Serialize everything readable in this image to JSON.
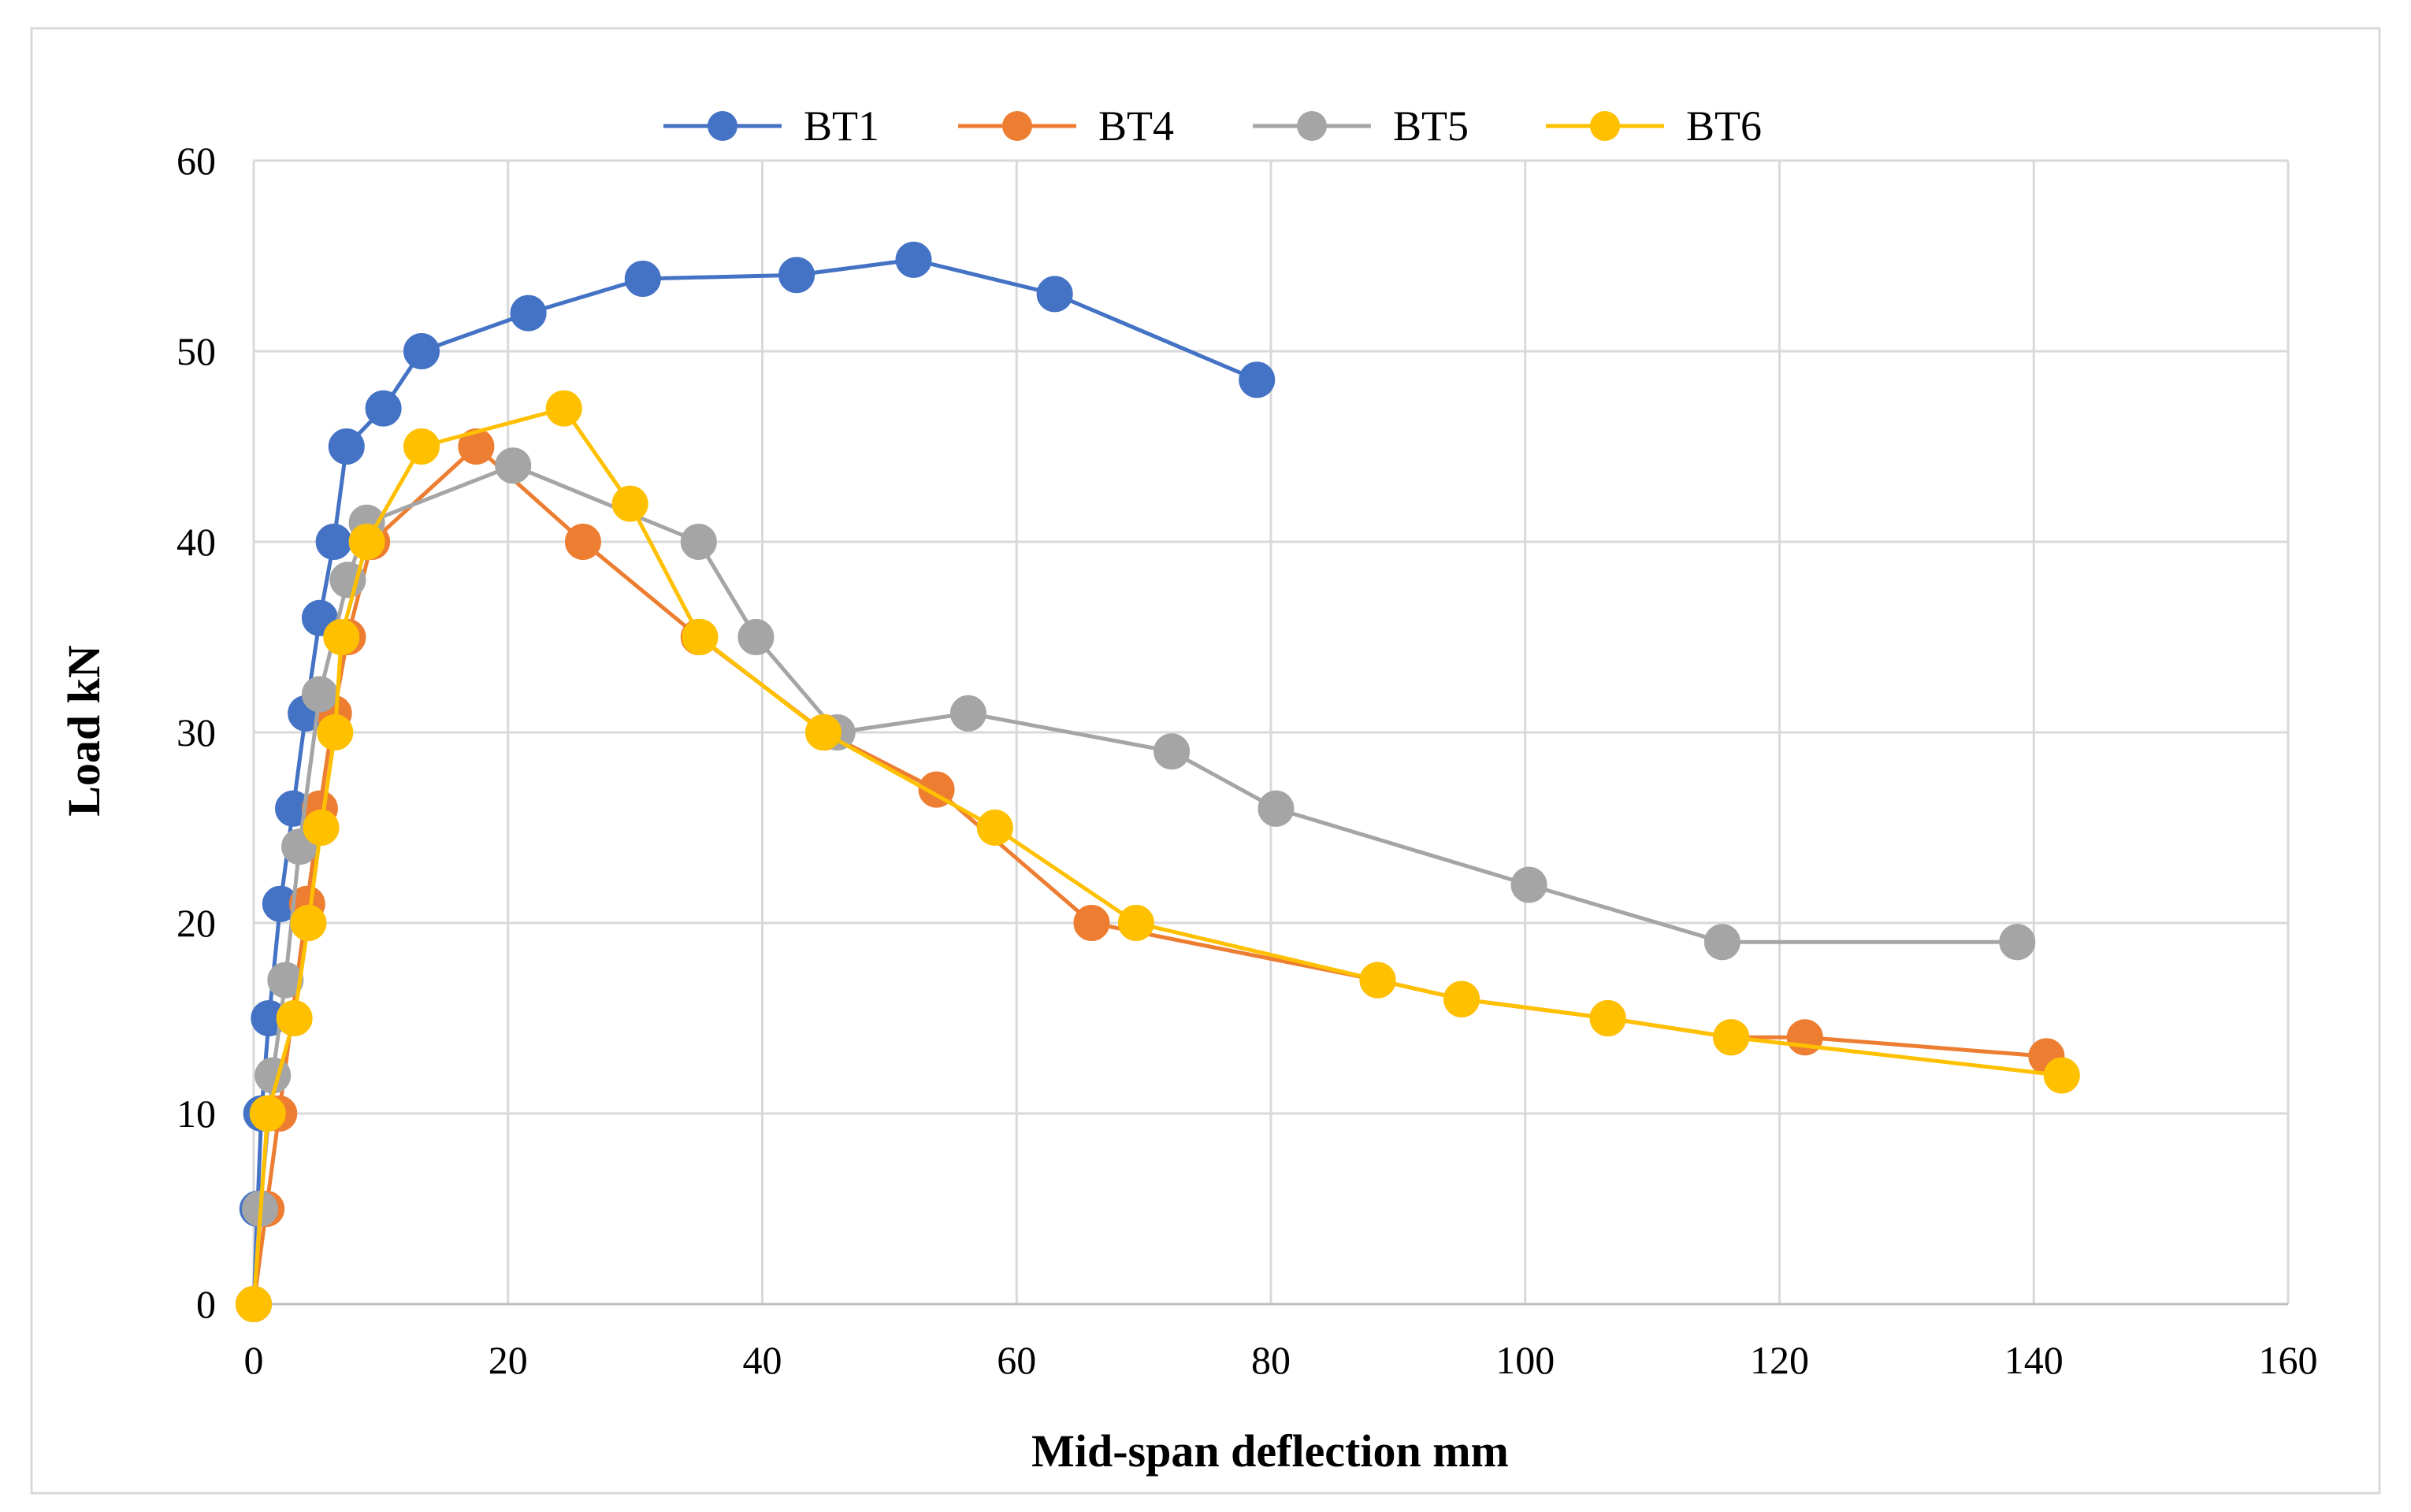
{
  "chart_data": {
    "type": "line",
    "title": "",
    "xlabel": "Mid-span deflection mm",
    "ylabel": "Load kN",
    "xlim": [
      0,
      160
    ],
    "ylim": [
      0,
      60
    ],
    "xticks": [
      0,
      20,
      40,
      60,
      80,
      100,
      120,
      140,
      160
    ],
    "yticks": [
      0,
      10,
      20,
      30,
      40,
      50,
      60
    ],
    "grid": true,
    "legend_position": "top",
    "series": [
      {
        "name": "BT1",
        "color": "#4472C4",
        "x": [
          0,
          0.3,
          0.6,
          1.2,
          2.1,
          3.1,
          4.1,
          5.2,
          6.3,
          7.3,
          10.2,
          13.2,
          21.6,
          30.6,
          42.7,
          51.9,
          63,
          78.9
        ],
        "y": [
          0,
          5,
          10,
          15,
          21,
          26,
          31,
          36,
          40,
          45,
          47,
          50,
          52,
          53.8,
          54,
          54.8,
          53,
          48.5
        ]
      },
      {
        "name": "BT4",
        "color": "#ED7D31",
        "x": [
          0,
          1,
          2,
          4.2,
          5.2,
          6.3,
          7.4,
          9.3,
          17.5,
          25.9,
          35,
          44.9,
          53.7,
          65.9,
          88.4,
          95,
          106.5,
          116.2,
          122,
          141
        ],
        "y": [
          0,
          5,
          10,
          21,
          26,
          31,
          35,
          40,
          45,
          40,
          35,
          30,
          27,
          20,
          17,
          16,
          15,
          14,
          14,
          13
        ]
      },
      {
        "name": "BT5",
        "color": "#A5A5A5",
        "x": [
          0,
          0.5,
          1.5,
          2.5,
          3.6,
          5.2,
          7.4,
          8.9,
          20.4,
          35,
          39.5,
          45.9,
          56.2,
          72.2,
          80.4,
          100.3,
          115.5,
          138.7
        ],
        "y": [
          0,
          5,
          12,
          17,
          24,
          32,
          38,
          41,
          44,
          40,
          35,
          30,
          31,
          29,
          26,
          22,
          19,
          19
        ]
      },
      {
        "name": "BT6",
        "color": "#FFC000",
        "x": [
          0,
          1.1,
          3.2,
          4.3,
          5.3,
          6.4,
          6.9,
          8.9,
          13.2,
          24.4,
          29.6,
          35.1,
          44.8,
          58.3,
          69.4,
          88.4,
          95,
          106.5,
          116.2,
          142.2
        ],
        "y": [
          0,
          10,
          15,
          20,
          25,
          30,
          35,
          40,
          45,
          47,
          42,
          35,
          30,
          25,
          20,
          17,
          16,
          15,
          14,
          12
        ]
      }
    ]
  }
}
